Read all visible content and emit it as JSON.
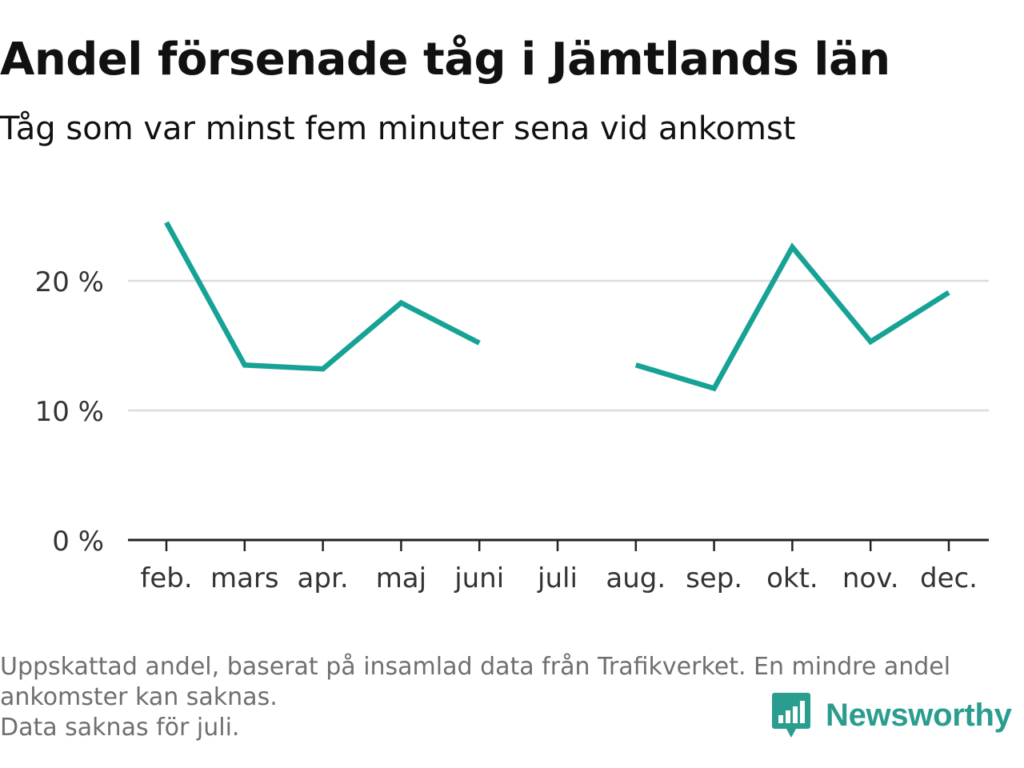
{
  "title": "Andel försenade tåg i Jämtlands län",
  "subtitle": "Tåg som var minst fem minuter sena vid ankomst",
  "footnote": {
    "line1": "Uppskattad andel, baserat på insamlad data från Trafikverket. En mindre andel",
    "line2": "ankomster kan saknas.",
    "line3": "Data saknas för juli."
  },
  "logo": {
    "text": "Newsworthy",
    "icon": "newsworthy-bar-chart-icon"
  },
  "colors": {
    "line": "#16a295",
    "grid": "#dcdcdc",
    "axis": "#222222",
    "brand": "#2a9d8f"
  },
  "chart_data": {
    "type": "line",
    "title": "Andel försenade tåg i Jämtlands län",
    "subtitle": "Tåg som var minst fem minuter sena vid ankomst",
    "categories": [
      "feb.",
      "mars",
      "apr.",
      "maj",
      "juni",
      "juli",
      "aug.",
      "sep.",
      "okt.",
      "nov.",
      "dec."
    ],
    "values": [
      24.5,
      13.5,
      13.2,
      18.3,
      15.2,
      null,
      13.5,
      11.7,
      22.6,
      15.3,
      19.1
    ],
    "y_ticks": [
      0,
      10,
      20
    ],
    "y_tick_labels": [
      "0 %",
      "10 %",
      "20 %"
    ],
    "ylim": [
      0,
      25
    ],
    "grid": true,
    "xlabel": "",
    "ylabel": ""
  }
}
